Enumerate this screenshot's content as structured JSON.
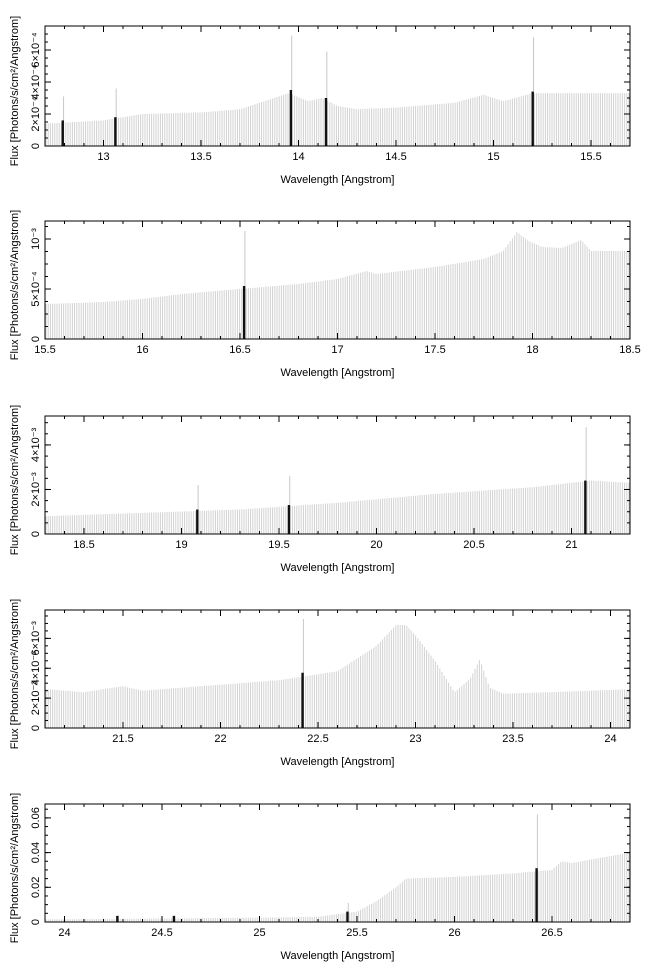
{
  "chart_data": [
    {
      "type": "bar",
      "xlabel": "Wavelength [Angstrom]",
      "ylabel": "Flux [Photons/s/cm²/Angstrom]",
      "xlim": [
        12.7,
        15.7
      ],
      "ylim": [
        0,
        0.00075
      ],
      "x_ticks": [
        13,
        13.5,
        14,
        14.5,
        15,
        15.5
      ],
      "x_tick_labels": [
        "13",
        "13.5",
        "14",
        "14.5",
        "15",
        "15.5"
      ],
      "y_ticks": [
        0,
        0.0002,
        0.0004,
        0.0006
      ],
      "y_tick_labels": [
        "0",
        "2×10⁻⁴",
        "4×10⁻⁴",
        "6×10⁻⁴"
      ],
      "continuum": {
        "x": [
          12.7,
          13.0,
          13.2,
          13.5,
          13.7,
          13.85,
          13.95,
          14.05,
          14.12,
          14.2,
          14.3,
          14.5,
          14.8,
          14.95,
          15.05,
          15.2,
          15.4,
          15.7
        ],
        "y": [
          0.00014,
          0.00016,
          0.0002,
          0.00021,
          0.00023,
          0.00029,
          0.00033,
          0.00028,
          0.0003,
          0.00025,
          0.00023,
          0.00024,
          0.00027,
          0.00032,
          0.00028,
          0.00033,
          0.00033,
          0.00033
        ]
      },
      "lines": [
        {
          "x": 12.79,
          "y": 0.00016,
          "peak": 0.00031
        },
        {
          "x": 13.06,
          "y": 0.00018,
          "peak": 0.00036
        },
        {
          "x": 13.96,
          "y": 0.00035,
          "peak": 0.00069
        },
        {
          "x": 14.14,
          "y": 0.0003,
          "peak": 0.00059
        },
        {
          "x": 15.2,
          "y": 0.00034,
          "peak": 0.00068
        }
      ]
    },
    {
      "type": "bar",
      "xlabel": "Wavelength [Angstrom]",
      "ylabel": "Flux [Photons/s/cm²/Angstrom]",
      "xlim": [
        15.5,
        18.5
      ],
      "ylim": [
        0,
        0.00118
      ],
      "x_ticks": [
        15.5,
        16,
        16.5,
        17,
        17.5,
        18,
        18.5
      ],
      "x_tick_labels": [
        "15.5",
        "16",
        "16.5",
        "17",
        "17.5",
        "18",
        "18.5"
      ],
      "y_ticks": [
        0,
        0.0005,
        0.001
      ],
      "y_tick_labels": [
        "0",
        "5×10⁻⁴",
        "10⁻³"
      ],
      "continuum": {
        "x": [
          15.5,
          15.8,
          16.0,
          16.2,
          16.5,
          16.8,
          17.0,
          17.15,
          17.2,
          17.5,
          17.75,
          17.85,
          17.92,
          17.98,
          18.05,
          18.15,
          18.25,
          18.3,
          18.5
        ],
        "y": [
          0.00035,
          0.00037,
          0.0004,
          0.00045,
          0.0005,
          0.00055,
          0.0006,
          0.00068,
          0.00065,
          0.00072,
          0.0008,
          0.00088,
          0.00107,
          0.00098,
          0.00092,
          0.00091,
          0.00099,
          0.00088,
          0.00088
        ]
      },
      "lines": [
        {
          "x": 16.52,
          "y": 0.00053,
          "peak": 0.00108
        }
      ]
    },
    {
      "type": "bar",
      "xlabel": "Wavelength [Angstrom]",
      "ylabel": "Flux [Photons/s/cm²/Angstrom]",
      "xlim": [
        18.3,
        21.3
      ],
      "ylim": [
        0,
        0.0053
      ],
      "x_ticks": [
        18.5,
        19,
        19.5,
        20,
        20.5,
        21
      ],
      "x_tick_labels": [
        "18.5",
        "19",
        "19.5",
        "20",
        "20.5",
        "21"
      ],
      "y_ticks": [
        0,
        0.002,
        0.004
      ],
      "y_tick_labels": [
        "0",
        "2×10⁻³",
        "4×10⁻³"
      ],
      "continuum": {
        "x": [
          18.3,
          18.8,
          19.3,
          19.8,
          20.3,
          20.8,
          21.1,
          21.3
        ],
        "y": [
          0.0008,
          0.00095,
          0.0011,
          0.0014,
          0.0018,
          0.0021,
          0.0024,
          0.0023
        ]
      },
      "lines": [
        {
          "x": 19.08,
          "y": 0.0011,
          "peak": 0.0022
        },
        {
          "x": 19.55,
          "y": 0.0013,
          "peak": 0.0026
        },
        {
          "x": 21.07,
          "y": 0.0024,
          "peak": 0.0048
        }
      ]
    },
    {
      "type": "bar",
      "xlabel": "Wavelength [Angstrom]",
      "ylabel": "Flux [Photons/s/cm²/Angstrom]",
      "xlim": [
        21.1,
        24.1
      ],
      "ylim": [
        0,
        0.0079
      ],
      "x_ticks": [
        21.5,
        22,
        22.5,
        23,
        23.5,
        24
      ],
      "x_tick_labels": [
        "21.5",
        "22",
        "22.5",
        "23",
        "23.5",
        "24"
      ],
      "y_ticks": [
        0,
        0.002,
        0.004,
        0.006
      ],
      "y_tick_labels": [
        "0",
        "2×10⁻³",
        "4×10⁻³",
        "6×10⁻³"
      ],
      "continuum": {
        "x": [
          21.1,
          21.3,
          21.5,
          21.6,
          21.8,
          22.0,
          22.3,
          22.6,
          22.8,
          22.9,
          22.95,
          23.0,
          23.1,
          23.2,
          23.28,
          23.33,
          23.38,
          23.45,
          23.7,
          24.1
        ],
        "y": [
          0.0026,
          0.0024,
          0.0028,
          0.0025,
          0.0027,
          0.0029,
          0.0032,
          0.0038,
          0.0055,
          0.0069,
          0.0069,
          0.0062,
          0.0045,
          0.0024,
          0.0033,
          0.0046,
          0.0027,
          0.0023,
          0.0024,
          0.0026
        ]
      },
      "lines": [
        {
          "x": 22.42,
          "y": 0.0037,
          "peak": 0.0073
        }
      ]
    },
    {
      "type": "bar",
      "xlabel": "Wavelength [Angstrom]",
      "ylabel": "Flux [Photons/s/cm²/Angstrom]",
      "xlim": [
        23.9,
        26.9
      ],
      "ylim": [
        0,
        0.068
      ],
      "x_ticks": [
        24,
        24.5,
        25,
        25.5,
        26,
        26.5
      ],
      "x_tick_labels": [
        "24",
        "24.5",
        "25",
        "25.5",
        "26",
        "26.5"
      ],
      "y_ticks": [
        0,
        0.02,
        0.04,
        0.06
      ],
      "y_tick_labels": [
        "0",
        "0.02",
        "0.04",
        "0.06"
      ],
      "continuum": {
        "x": [
          23.9,
          24.5,
          25.0,
          25.3,
          25.5,
          25.6,
          25.7,
          25.75,
          26.0,
          26.3,
          26.5,
          26.55,
          26.6,
          26.9
        ],
        "y": [
          0.0015,
          0.002,
          0.0025,
          0.003,
          0.006,
          0.012,
          0.02,
          0.025,
          0.026,
          0.028,
          0.03,
          0.035,
          0.034,
          0.04
        ]
      },
      "lines": [
        {
          "x": 24.27,
          "y": 0.0035,
          "peak": 0.004
        },
        {
          "x": 24.56,
          "y": 0.0035,
          "peak": 0.004
        },
        {
          "x": 25.45,
          "y": 0.006,
          "peak": 0.011
        },
        {
          "x": 26.42,
          "y": 0.031,
          "peak": 0.062
        }
      ]
    }
  ]
}
